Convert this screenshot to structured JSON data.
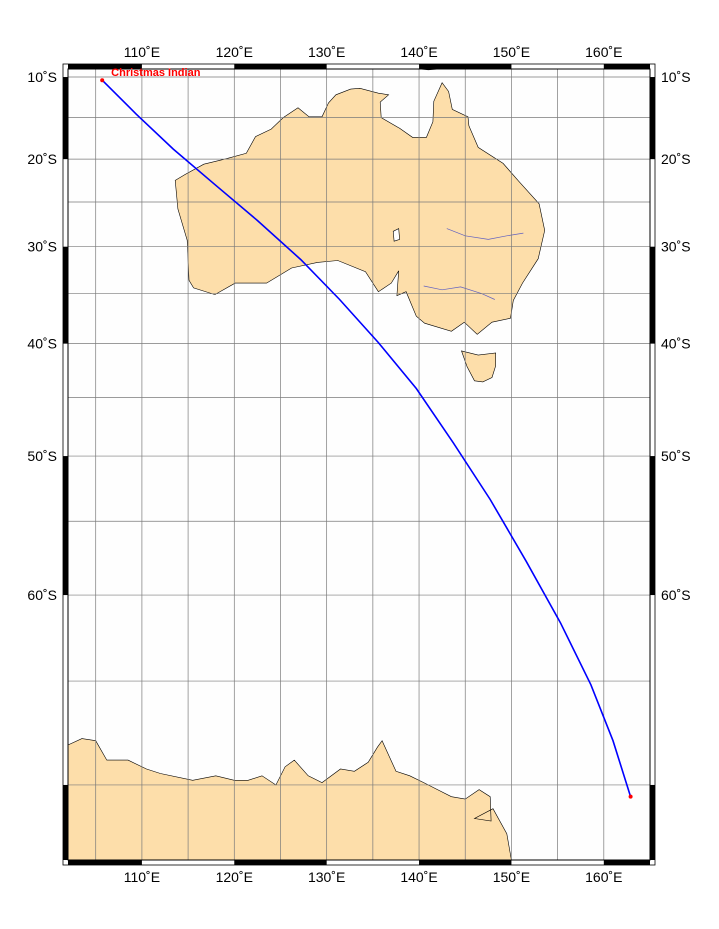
{
  "map": {
    "projection": "mercator",
    "lon_range": [
      102,
      165
    ],
    "lat_range": [
      -73,
      -9
    ],
    "grid_lon_step": 5,
    "grid_lat_step": 5,
    "lon_labels": [
      "110˚E",
      "120˚E",
      "130˚E",
      "140˚E",
      "150˚E",
      "160˚E"
    ],
    "lat_labels": [
      "10˚S",
      "20˚S",
      "30˚S",
      "40˚S",
      "50˚S",
      "60˚S"
    ],
    "land_color": "#fddeaa",
    "ocean_color": "#fefefe",
    "grid_color": "#7a7a7a",
    "route_color": "#0000ff",
    "marker_color": "#ff0000"
  },
  "route": {
    "start": {
      "label": "Christmas Indian",
      "lon": 105.7,
      "lat": -10.4
    },
    "end": {
      "lon": 162.9,
      "lat": -70.5
    },
    "path": [
      [
        105.7,
        -10.4
      ],
      [
        109.4,
        -14.6
      ],
      [
        113.4,
        -18.8
      ],
      [
        117.8,
        -22.9
      ],
      [
        122.5,
        -27.1
      ],
      [
        127.2,
        -31.4
      ],
      [
        131.4,
        -35.6
      ],
      [
        135.6,
        -39.9
      ],
      [
        139.7,
        -44.2
      ],
      [
        143.7,
        -48.9
      ],
      [
        147.7,
        -53.4
      ],
      [
        151.6,
        -57.8
      ],
      [
        155.3,
        -61.7
      ],
      [
        158.6,
        -65.2
      ],
      [
        161.0,
        -68.0
      ],
      [
        162.9,
        -70.5
      ]
    ]
  }
}
